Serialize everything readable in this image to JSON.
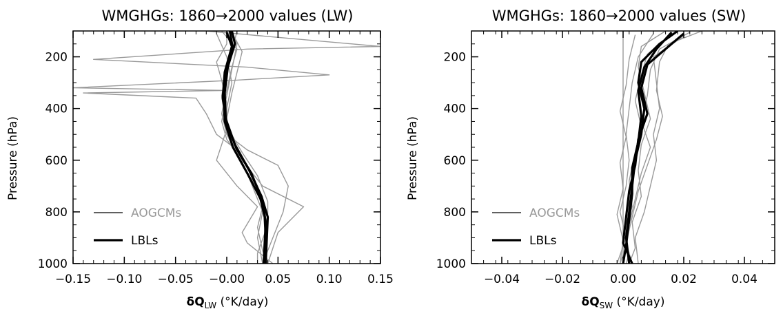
{
  "colors": {
    "aogcm": "#999999",
    "lbl": "#000000"
  },
  "chart_data": [
    {
      "type": "line",
      "title": "WMGHGs: 1860→2000 values (LW)",
      "xlabel_sym": "δQ",
      "xlabel_sub": "LW",
      "xlabel_unit": " (°K/day)",
      "ylabel": "Pressure (hPa)",
      "xlim": [
        -0.15,
        0.15
      ],
      "ylim": [
        1000,
        100
      ],
      "xticks": [
        -0.15,
        -0.1,
        -0.05,
        0.0,
        0.05,
        0.1,
        0.15
      ],
      "xtick_labels": [
        "−0.15",
        "−0.10",
        "−0.05",
        "−0.00",
        "0.05",
        "0.10",
        "0.15"
      ],
      "yticks": [
        200,
        400,
        600,
        800,
        1000
      ],
      "ytick_labels": [
        "200",
        "400",
        "600",
        "800",
        "1000"
      ],
      "legend": [
        {
          "label": "AOGCMs",
          "style": "thin",
          "color": "#999999"
        },
        {
          "label": "LBLs",
          "style": "thick",
          "color": "#000000"
        }
      ],
      "series": [
        {
          "group": "AOGCMs",
          "points": [
            [
              -0.02,
              100
            ],
            [
              0.15,
              160
            ],
            [
              0.02,
              170
            ],
            [
              -0.13,
              210
            ],
            [
              0.02,
              240
            ],
            [
              0.1,
              270
            ],
            [
              0.01,
              290
            ],
            [
              -0.15,
              320
            ],
            [
              0.0,
              330
            ],
            [
              -0.14,
              340
            ],
            [
              -0.03,
              360
            ],
            [
              -0.02,
              420
            ],
            [
              -0.01,
              500
            ],
            [
              0.01,
              560
            ],
            [
              0.02,
              650
            ],
            [
              0.03,
              750
            ],
            [
              0.04,
              850
            ],
            [
              0.035,
              1000
            ]
          ]
        },
        {
          "group": "AOGCMs",
          "points": [
            [
              0.005,
              100
            ],
            [
              0.01,
              150
            ],
            [
              0.005,
              250
            ],
            [
              0.0,
              350
            ],
            [
              -0.005,
              450
            ],
            [
              0.0,
              520
            ],
            [
              0.015,
              600
            ],
            [
              0.035,
              700
            ],
            [
              0.075,
              780
            ],
            [
              0.05,
              880
            ],
            [
              0.04,
              1000
            ]
          ]
        },
        {
          "group": "AOGCMs",
          "points": [
            [
              -0.01,
              110
            ],
            [
              0.0,
              200
            ],
            [
              0.005,
              300
            ],
            [
              0.0,
              400
            ],
            [
              0.0,
              500
            ],
            [
              0.02,
              560
            ],
            [
              0.05,
              620
            ],
            [
              0.06,
              700
            ],
            [
              0.055,
              800
            ],
            [
              0.045,
              900
            ],
            [
              0.035,
              1000
            ]
          ]
        },
        {
          "group": "AOGCMs",
          "points": [
            [
              0.01,
              100
            ],
            [
              0.005,
              180
            ],
            [
              0.0,
              250
            ],
            [
              -0.005,
              350
            ],
            [
              0.0,
              480
            ],
            [
              -0.005,
              540
            ],
            [
              -0.01,
              600
            ],
            [
              0.01,
              700
            ],
            [
              0.03,
              780
            ],
            [
              0.015,
              880
            ],
            [
              0.02,
              920
            ],
            [
              0.045,
              1000
            ]
          ]
        },
        {
          "group": "AOGCMs",
          "points": [
            [
              -0.005,
              100
            ],
            [
              0.01,
              170
            ],
            [
              0.005,
              240
            ],
            [
              0.0,
              330
            ],
            [
              -0.005,
              420
            ],
            [
              0.0,
              500
            ],
            [
              0.01,
              580
            ],
            [
              0.025,
              680
            ],
            [
              0.035,
              780
            ],
            [
              0.03,
              860
            ],
            [
              0.035,
              950
            ],
            [
              0.04,
              1000
            ]
          ]
        },
        {
          "group": "AOGCMs",
          "points": [
            [
              0.0,
              100
            ],
            [
              0.0,
              150
            ],
            [
              -0.01,
              220
            ],
            [
              -0.005,
              290
            ],
            [
              0.0,
              380
            ],
            [
              0.0,
              470
            ],
            [
              0.015,
              570
            ],
            [
              0.03,
              660
            ],
            [
              0.04,
              760
            ],
            [
              0.04,
              850
            ],
            [
              0.03,
              960
            ],
            [
              0.03,
              1000
            ]
          ]
        },
        {
          "group": "AOGCMs",
          "points": [
            [
              0.005,
              105
            ],
            [
              0.015,
              180
            ],
            [
              0.01,
              260
            ],
            [
              0.005,
              340
            ],
            [
              0.0,
              440
            ],
            [
              0.005,
              530
            ],
            [
              0.02,
              620
            ],
            [
              0.03,
              700
            ],
            [
              0.035,
              800
            ],
            [
              0.03,
              900
            ],
            [
              0.035,
              1000
            ]
          ]
        },
        {
          "group": "LBLs",
          "points": [
            [
              0.005,
              100
            ],
            [
              0.008,
              150
            ],
            [
              0.0,
              250
            ],
            [
              -0.003,
              350
            ],
            [
              -0.002,
              450
            ],
            [
              0.006,
              550
            ],
            [
              0.02,
              650
            ],
            [
              0.033,
              750
            ],
            [
              0.037,
              820
            ],
            [
              0.038,
              900
            ],
            [
              0.037,
              1000
            ]
          ]
        },
        {
          "group": "LBLs",
          "points": [
            [
              0.0,
              105
            ],
            [
              0.005,
              160
            ],
            [
              -0.002,
              260
            ],
            [
              -0.004,
              360
            ],
            [
              0.0,
              460
            ],
            [
              0.01,
              560
            ],
            [
              0.024,
              650
            ],
            [
              0.035,
              760
            ],
            [
              0.038,
              840
            ],
            [
              0.037,
              920
            ],
            [
              0.036,
              1000
            ]
          ]
        },
        {
          "group": "LBLs",
          "points": [
            [
              0.003,
              100
            ],
            [
              0.006,
              170
            ],
            [
              0.001,
              240
            ],
            [
              -0.002,
              340
            ],
            [
              -0.001,
              440
            ],
            [
              0.008,
              540
            ],
            [
              0.022,
              640
            ],
            [
              0.034,
              740
            ],
            [
              0.04,
              820
            ],
            [
              0.039,
              910
            ],
            [
              0.038,
              1000
            ]
          ]
        }
      ]
    },
    {
      "type": "line",
      "title": "WMGHGs: 1860→2000 values (SW)",
      "xlabel_sym": "δQ",
      "xlabel_sub": "SW",
      "xlabel_unit": " (°K/day)",
      "ylabel": "Pressure (hPa)",
      "xlim": [
        -0.05,
        0.05
      ],
      "ylim": [
        1000,
        100
      ],
      "xticks": [
        -0.04,
        -0.02,
        0.0,
        0.02,
        0.04
      ],
      "xtick_labels": [
        "−0.04",
        "−0.02",
        "0.00",
        "0.02",
        "0.04"
      ],
      "yticks": [
        200,
        400,
        600,
        800,
        1000
      ],
      "ytick_labels": [
        "200",
        "400",
        "600",
        "800",
        "1000"
      ],
      "legend": [
        {
          "label": "AOGCMs",
          "style": "thin",
          "color": "#999999"
        },
        {
          "label": "LBLs",
          "style": "thick",
          "color": "#000000"
        }
      ],
      "series": [
        {
          "group": "AOGCMs",
          "points": [
            [
              0.0,
              100
            ],
            [
              0.0,
              1000
            ]
          ]
        },
        {
          "group": "AOGCMs",
          "points": [
            [
              0.026,
              100
            ],
            [
              0.015,
              150
            ],
            [
              0.012,
              220
            ],
            [
              0.011,
              330
            ],
            [
              0.013,
              430
            ],
            [
              0.011,
              520
            ],
            [
              0.008,
              620
            ],
            [
              0.005,
              720
            ],
            [
              0.003,
              820
            ],
            [
              0.001,
              920
            ],
            [
              0.003,
              1000
            ]
          ]
        },
        {
          "group": "AOGCMs",
          "points": [
            [
              0.022,
              105
            ],
            [
              0.012,
              170
            ],
            [
              0.009,
              250
            ],
            [
              0.008,
              350
            ],
            [
              0.006,
              450
            ],
            [
              0.009,
              550
            ],
            [
              0.006,
              650
            ],
            [
              0.004,
              750
            ],
            [
              0.002,
              850
            ],
            [
              0.001,
              930
            ],
            [
              -0.001,
              1000
            ]
          ]
        },
        {
          "group": "AOGCMs",
          "points": [
            [
              0.016,
              110
            ],
            [
              0.008,
              190
            ],
            [
              0.006,
              270
            ],
            [
              0.004,
              370
            ],
            [
              0.006,
              470
            ],
            [
              0.004,
              570
            ],
            [
              0.002,
              680
            ],
            [
              0.003,
              780
            ],
            [
              0.0,
              880
            ],
            [
              0.002,
              960
            ],
            [
              0.001,
              1000
            ]
          ]
        },
        {
          "group": "AOGCMs",
          "points": [
            [
              0.01,
              110
            ],
            [
              0.005,
              200
            ],
            [
              0.003,
              300
            ],
            [
              0.002,
              400
            ],
            [
              0.001,
              500
            ],
            [
              0.002,
              600
            ],
            [
              0.001,
              700
            ],
            [
              -0.001,
              800
            ],
            [
              0.001,
              900
            ],
            [
              -0.002,
              1000
            ]
          ]
        },
        {
          "group": "AOGCMs",
          "points": [
            [
              0.004,
              115
            ],
            [
              0.002,
              210
            ],
            [
              0.001,
              310
            ],
            [
              -0.001,
              410
            ],
            [
              0.001,
              510
            ],
            [
              -0.001,
              610
            ],
            [
              0.0,
              710
            ],
            [
              -0.002,
              810
            ],
            [
              0.0,
              910
            ],
            [
              -0.001,
              1000
            ]
          ]
        },
        {
          "group": "AOGCMs",
          "points": [
            [
              0.02,
              120
            ],
            [
              0.01,
              200
            ],
            [
              0.011,
              300
            ],
            [
              0.012,
              400
            ],
            [
              0.01,
              500
            ],
            [
              0.011,
              600
            ],
            [
              0.009,
              700
            ],
            [
              0.007,
              800
            ],
            [
              0.004,
              900
            ],
            [
              0.005,
              1000
            ]
          ]
        },
        {
          "group": "AOGCMs",
          "points": [
            [
              0.014,
              100
            ],
            [
              0.006,
              160
            ],
            [
              0.005,
              240
            ],
            [
              0.007,
              340
            ],
            [
              0.009,
              440
            ],
            [
              0.006,
              540
            ],
            [
              0.005,
              640
            ],
            [
              0.006,
              740
            ],
            [
              0.003,
              840
            ],
            [
              0.004,
              940
            ],
            [
              0.002,
              1000
            ]
          ]
        },
        {
          "group": "LBLs",
          "points": [
            [
              0.018,
              100
            ],
            [
              0.012,
              150
            ],
            [
              0.006,
              220
            ],
            [
              0.005,
              300
            ],
            [
              0.007,
              400
            ],
            [
              0.006,
              500
            ],
            [
              0.004,
              600
            ],
            [
              0.003,
              700
            ],
            [
              0.002,
              800
            ],
            [
              0.001,
              900
            ],
            [
              0.002,
              1000
            ]
          ]
        },
        {
          "group": "LBLs",
          "points": [
            [
              0.02,
              110
            ],
            [
              0.015,
              160
            ],
            [
              0.008,
              230
            ],
            [
              0.006,
              320
            ],
            [
              0.008,
              420
            ],
            [
              0.005,
              520
            ],
            [
              0.004,
              620
            ],
            [
              0.002,
              720
            ],
            [
              0.001,
              820
            ],
            [
              0.0,
              920
            ],
            [
              0.003,
              1000
            ]
          ]
        },
        {
          "group": "LBLs",
          "points": [
            [
              0.016,
              105
            ],
            [
              0.011,
              170
            ],
            [
              0.007,
              240
            ],
            [
              0.005,
              330
            ],
            [
              0.006,
              430
            ],
            [
              0.005,
              530
            ],
            [
              0.003,
              630
            ],
            [
              0.003,
              730
            ],
            [
              0.002,
              830
            ],
            [
              0.001,
              930
            ],
            [
              0.0,
              1000
            ]
          ]
        }
      ]
    }
  ]
}
